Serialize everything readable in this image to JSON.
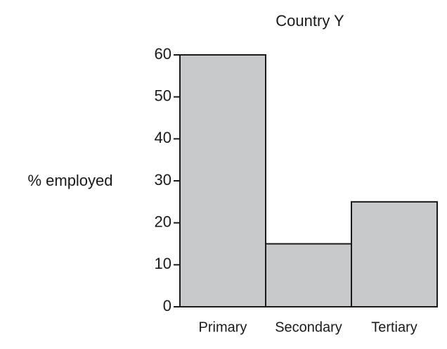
{
  "chart_data": {
    "type": "bar",
    "title": "Country Y",
    "y_label": "% employed",
    "categories": [
      "Primary",
      "Secondary",
      "Tertiary"
    ],
    "values": [
      60,
      15,
      25
    ],
    "color": "#c8c9cb",
    "ylim": [
      0,
      60
    ],
    "yticks": [
      0,
      10,
      20,
      30,
      40,
      50,
      60
    ],
    "grid": false
  }
}
